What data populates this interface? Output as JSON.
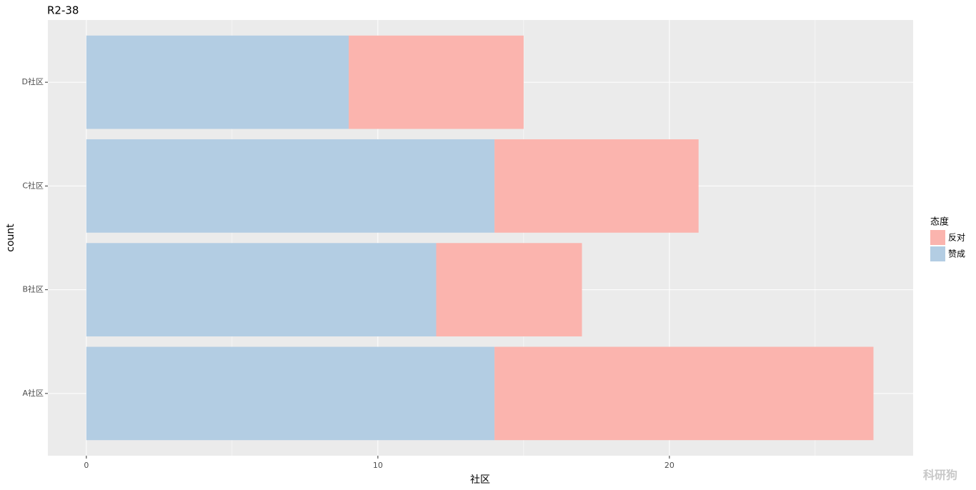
{
  "chart_data": {
    "type": "stacked-barh",
    "title": "R2-38",
    "x_label": "社区",
    "y_label": "count",
    "categories": [
      "A社区",
      "B社区",
      "C社区",
      "D社区"
    ],
    "series": [
      {
        "name": "反对",
        "color": "#fbb4ae",
        "values": [
          13,
          5,
          7,
          6
        ]
      },
      {
        "name": "赞成",
        "color": "#b3cde3",
        "values": [
          14,
          12,
          14,
          9
        ]
      }
    ],
    "xlim": [
      -1.32,
      28.36
    ],
    "xticks": [
      0,
      10,
      20
    ],
    "grid": true,
    "legend_title": "态度",
    "legend_position": "right",
    "watermark": "科研狗"
  }
}
